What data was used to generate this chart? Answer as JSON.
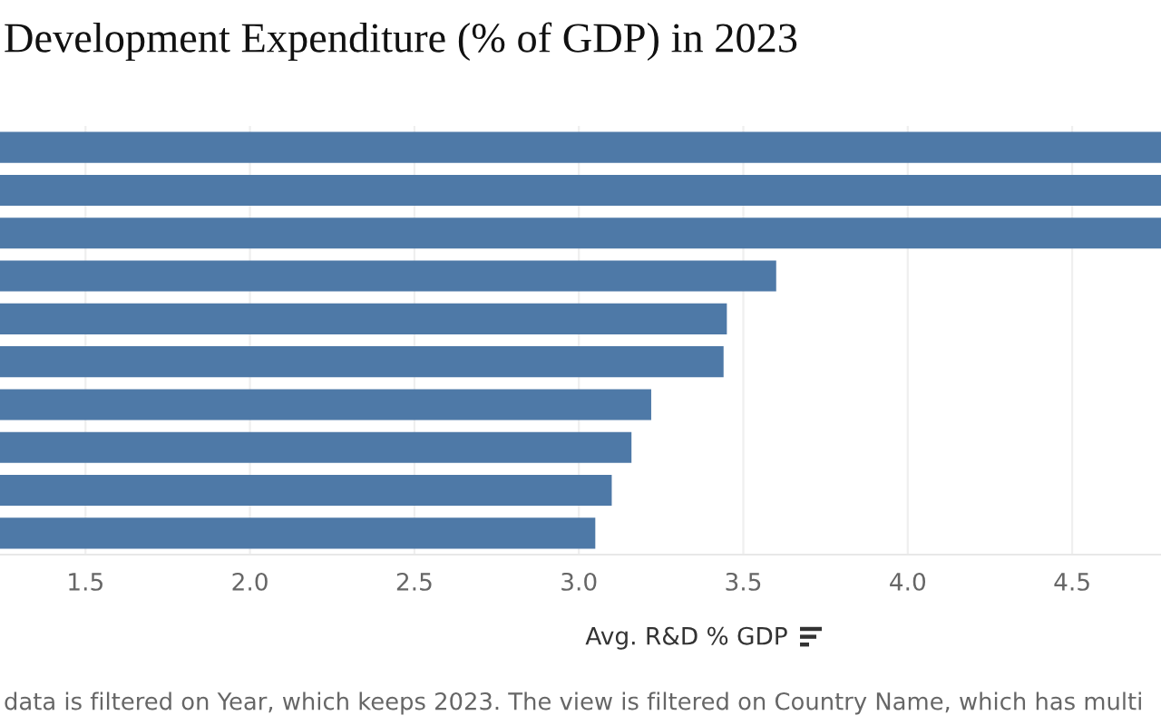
{
  "chart_data": {
    "type": "bar",
    "orientation": "horizontal",
    "title": "Development Expenditure (% of GDP) in 2023",
    "xlabel": "Avg. R&D % GDP",
    "annotations": [
      "data is filtered on Year, which keeps 2023. The view is filtered on Country Name, which has multi"
    ],
    "categories": [
      null,
      null,
      null,
      null,
      null,
      null,
      null,
      null,
      null,
      null
    ],
    "values": [
      4.77,
      4.77,
      4.77,
      3.6,
      3.45,
      3.44,
      3.22,
      3.16,
      3.1,
      3.05
    ],
    "color": "#4e79a7",
    "xlim": [
      1.24,
      4.77
    ],
    "xticks": [
      1.5,
      {
        "value": 2,
        "label": "2.0"
      },
      2.5,
      {
        "value": 3,
        "label": "3.0"
      },
      3.5,
      {
        "value": 4,
        "label": "4.0"
      },
      4.5
    ],
    "grid": "x"
  }
}
